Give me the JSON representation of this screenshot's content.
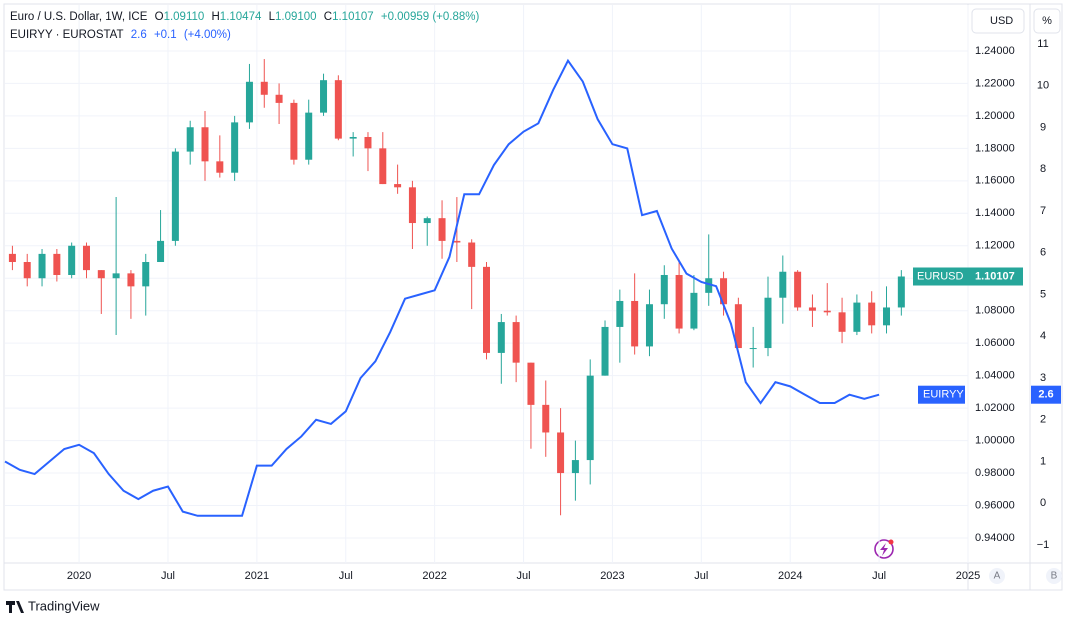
{
  "header": {
    "symbol": "Euro / U.S. Dollar, 1W, ICE",
    "o_label": "O",
    "open": "1.09110",
    "h_label": "H",
    "high": "1.10474",
    "l_label": "L",
    "low": "1.09100",
    "c_label": "C",
    "close": "1.10107",
    "change": "+0.00959 (+0.88%)",
    "indicator": "EUIRYY · EUROSTAT",
    "ind_value": "2.6",
    "ind_change": "+0.1",
    "ind_pct": "(+4.00%)"
  },
  "price_unit": "USD",
  "pct_unit": "%",
  "buttons": [
    "A",
    "B"
  ],
  "footer": "TradingView",
  "chart_data": {
    "type": "candlestick",
    "xlim": [
      "2019-08",
      "2025-01"
    ],
    "xticks": [
      {
        "value": "2020-01",
        "label": "2020"
      },
      {
        "value": "2020-07",
        "label": "Jul"
      },
      {
        "value": "2021-01",
        "label": "2021"
      },
      {
        "value": "2021-07",
        "label": "Jul"
      },
      {
        "value": "2022-01",
        "label": "2022"
      },
      {
        "value": "2022-07",
        "label": "Jul"
      },
      {
        "value": "2023-01",
        "label": "2023"
      },
      {
        "value": "2023-07",
        "label": "Jul"
      },
      {
        "value": "2024-01",
        "label": "2024"
      },
      {
        "value": "2024-07",
        "label": "Jul"
      },
      {
        "value": "2025-01",
        "label": "2025"
      }
    ],
    "ylim": [
      0.9246,
      1.2683
    ],
    "yticks": [
      {
        "value": 0.94,
        "label": "0.94000"
      },
      {
        "value": 0.96,
        "label": "0.96000"
      },
      {
        "value": 0.98,
        "label": "0.98000"
      },
      {
        "value": 1.0,
        "label": "1.00000"
      },
      {
        "value": 1.02,
        "label": "1.02000"
      },
      {
        "value": 1.04,
        "label": "1.04000"
      },
      {
        "value": 1.06,
        "label": "1.06000"
      },
      {
        "value": 1.08,
        "label": "1.08000"
      },
      {
        "value": 1.1,
        "label": "1.10000"
      },
      {
        "value": 1.12,
        "label": "1.12000"
      },
      {
        "value": 1.14,
        "label": "1.14000"
      },
      {
        "value": 1.16,
        "label": "1.16000"
      },
      {
        "value": 1.18,
        "label": "1.18000"
      },
      {
        "value": 1.2,
        "label": "1.20000"
      },
      {
        "value": 1.22,
        "label": "1.22000"
      },
      {
        "value": 1.24,
        "label": "1.24000"
      }
    ],
    "y2lim": [
      -1.431,
      11.934
    ],
    "y2ticks": [
      {
        "value": -1,
        "label": "−1"
      },
      0,
      1,
      2,
      3,
      4,
      5,
      6,
      7,
      8,
      9,
      10,
      11
    ],
    "grid": true,
    "series": [
      {
        "name": "EURUSD",
        "up_color": "#26a69a",
        "down_color": "#ef5350",
        "last_label": "1.10107",
        "x": [
          "2019-08",
          "2019-09",
          "2019-10",
          "2019-11",
          "2019-12",
          "2020-01",
          "2020-02",
          "2020-03",
          "2020-04",
          "2020-05",
          "2020-06",
          "2020-07",
          "2020-08",
          "2020-09",
          "2020-10",
          "2020-11",
          "2020-12",
          "2021-01",
          "2021-02",
          "2021-03",
          "2021-04",
          "2021-05",
          "2021-06",
          "2021-07",
          "2021-08",
          "2021-09",
          "2021-10",
          "2021-11",
          "2021-12",
          "2022-01",
          "2022-02",
          "2022-03",
          "2022-04",
          "2022-05",
          "2022-06",
          "2022-07",
          "2022-08",
          "2022-09",
          "2022-10",
          "2022-11",
          "2022-12",
          "2023-01",
          "2023-02",
          "2023-03",
          "2023-04",
          "2023-05",
          "2023-06",
          "2023-07",
          "2023-08",
          "2023-09",
          "2023-10",
          "2023-11",
          "2023-12",
          "2024-01",
          "2024-02",
          "2024-03",
          "2024-04",
          "2024-05",
          "2024-06",
          "2024-07",
          "2024-08"
        ],
        "open": [
          1.115,
          1.11,
          1.1,
          1.115,
          1.102,
          1.12,
          1.105,
          1.1,
          1.103,
          1.095,
          1.11,
          1.123,
          1.178,
          1.193,
          1.172,
          1.165,
          1.196,
          1.221,
          1.213,
          1.208,
          1.173,
          1.202,
          1.222,
          1.186,
          1.187,
          1.18,
          1.158,
          1.156,
          1.134,
          1.137,
          1.123,
          1.122,
          1.107,
          1.054,
          1.073,
          1.048,
          1.022,
          1.005,
          0.98,
          0.988,
          1.04,
          1.07,
          1.086,
          1.058,
          1.084,
          1.102,
          1.069,
          1.091,
          1.1,
          1.084,
          1.057,
          1.057,
          1.088,
          1.104,
          1.082,
          1.08,
          1.079,
          1.067,
          1.085,
          1.071,
          1.082
        ],
        "high": [
          1.12,
          1.115,
          1.118,
          1.118,
          1.122,
          1.122,
          1.105,
          1.15,
          1.105,
          1.115,
          1.142,
          1.18,
          1.197,
          1.203,
          1.188,
          1.2,
          1.232,
          1.235,
          1.22,
          1.21,
          1.21,
          1.226,
          1.225,
          1.19,
          1.19,
          1.19,
          1.17,
          1.16,
          1.138,
          1.148,
          1.15,
          1.124,
          1.11,
          1.078,
          1.077,
          1.048,
          1.037,
          1.02,
          1.0,
          1.05,
          1.074,
          1.093,
          1.103,
          1.093,
          1.108,
          1.11,
          1.102,
          1.127,
          1.104,
          1.088,
          1.07,
          1.101,
          1.114,
          1.105,
          1.09,
          1.097,
          1.088,
          1.09,
          1.092,
          1.095,
          1.105
        ],
        "low": [
          1.105,
          1.095,
          1.095,
          1.098,
          1.1,
          1.1,
          1.078,
          1.065,
          1.075,
          1.077,
          1.11,
          1.12,
          1.17,
          1.16,
          1.162,
          1.16,
          1.192,
          1.205,
          1.195,
          1.17,
          1.17,
          1.2,
          1.185,
          1.175,
          1.166,
          1.158,
          1.152,
          1.118,
          1.12,
          1.112,
          1.11,
          1.081,
          1.05,
          1.035,
          1.036,
          0.995,
          0.99,
          0.954,
          0.963,
          0.973,
          1.04,
          1.048,
          1.053,
          1.052,
          1.075,
          1.066,
          1.068,
          1.083,
          1.077,
          1.057,
          1.045,
          1.052,
          1.072,
          1.08,
          1.07,
          1.077,
          1.06,
          1.065,
          1.066,
          1.066,
          1.077
        ],
        "close": [
          1.11,
          1.1,
          1.115,
          1.102,
          1.12,
          1.105,
          1.1,
          1.103,
          1.095,
          1.11,
          1.123,
          1.178,
          1.193,
          1.172,
          1.165,
          1.196,
          1.221,
          1.213,
          1.208,
          1.173,
          1.202,
          1.222,
          1.186,
          1.187,
          1.18,
          1.158,
          1.156,
          1.134,
          1.137,
          1.123,
          1.122,
          1.107,
          1.054,
          1.073,
          1.048,
          1.022,
          1.005,
          0.98,
          0.988,
          1.04,
          1.07,
          1.086,
          1.058,
          1.084,
          1.102,
          1.069,
          1.091,
          1.1,
          1.084,
          1.057,
          1.057,
          1.088,
          1.104,
          1.082,
          1.08,
          1.079,
          1.067,
          1.085,
          1.071,
          1.082,
          1.10107
        ]
      },
      {
        "name": "EUIRYY",
        "type": "line",
        "color": "#2962ff",
        "axis": "y2",
        "x": [
          "2019-08",
          "2019-09",
          "2019-10",
          "2019-11",
          "2019-12",
          "2020-01",
          "2020-02",
          "2020-03",
          "2020-04",
          "2020-05",
          "2020-06",
          "2020-07",
          "2020-08",
          "2020-09",
          "2020-10",
          "2020-11",
          "2020-12",
          "2021-01",
          "2021-02",
          "2021-03",
          "2021-04",
          "2021-05",
          "2021-06",
          "2021-07",
          "2021-08",
          "2021-09",
          "2021-10",
          "2021-11",
          "2021-12",
          "2022-01",
          "2022-02",
          "2022-03",
          "2022-04",
          "2022-05",
          "2022-06",
          "2022-07",
          "2022-08",
          "2022-09",
          "2022-10",
          "2022-11",
          "2022-12",
          "2023-01",
          "2023-02",
          "2023-03",
          "2023-04",
          "2023-05",
          "2023-06",
          "2023-07",
          "2023-08",
          "2023-09",
          "2023-10",
          "2023-11",
          "2023-12",
          "2024-01",
          "2024-02",
          "2024-03",
          "2024-04",
          "2024-05",
          "2024-06",
          "2024-07"
        ],
        "values": [
          1.0,
          0.8,
          0.7,
          1.0,
          1.3,
          1.4,
          1.2,
          0.7,
          0.3,
          0.1,
          0.3,
          0.4,
          -0.2,
          -0.3,
          -0.3,
          -0.3,
          -0.3,
          0.9,
          0.9,
          1.3,
          1.6,
          2.0,
          1.9,
          2.2,
          3.0,
          3.4,
          4.1,
          4.9,
          5.0,
          5.1,
          5.9,
          7.4,
          7.4,
          8.1,
          8.6,
          8.9,
          9.1,
          9.9,
          10.6,
          10.1,
          9.2,
          8.6,
          8.5,
          6.9,
          7.0,
          6.1,
          5.5,
          5.3,
          5.2,
          4.3,
          2.9,
          2.4,
          2.9,
          2.8,
          2.6,
          2.4,
          2.4,
          2.6,
          2.5,
          2.6
        ]
      }
    ]
  }
}
